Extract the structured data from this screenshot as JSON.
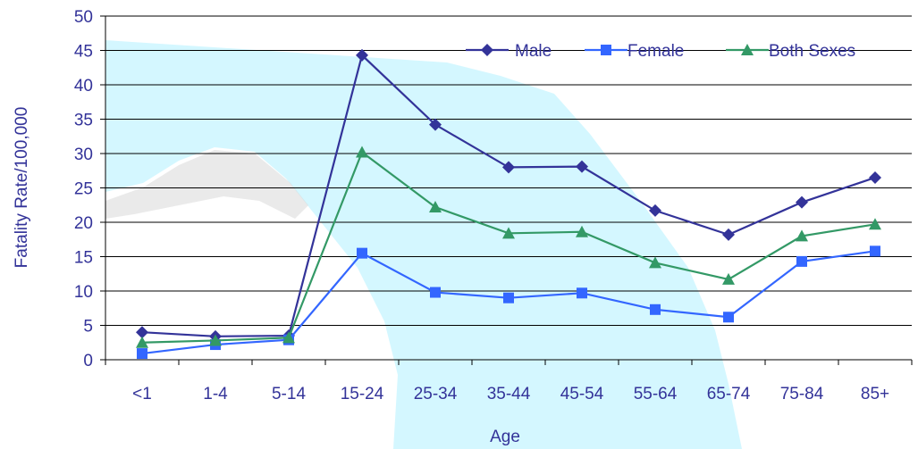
{
  "chart_data": {
    "type": "line",
    "xlabel": "Age",
    "ylabel": "Fatality Rate/100,000",
    "ylim": [
      0,
      50
    ],
    "yticks": [
      0,
      5,
      10,
      15,
      20,
      25,
      30,
      35,
      40,
      45,
      50
    ],
    "grid": true,
    "legend_position": "top-right",
    "categories": [
      "<1",
      "1-4",
      "5-14",
      "15-24",
      "25-34",
      "35-44",
      "45-54",
      "55-64",
      "65-74",
      "75-84",
      "85+"
    ],
    "series": [
      {
        "name": "Male",
        "marker": "diamond",
        "color": "#333399",
        "values": [
          4.0,
          3.4,
          3.5,
          44.3,
          34.2,
          28.0,
          28.1,
          21.7,
          18.2,
          22.9,
          26.5
        ]
      },
      {
        "name": "Female",
        "marker": "square",
        "color": "#3366ff",
        "values": [
          0.9,
          2.2,
          2.9,
          15.5,
          9.8,
          9.0,
          9.7,
          7.3,
          6.2,
          14.3,
          15.8
        ]
      },
      {
        "name": "Both Sexes",
        "marker": "triangle",
        "color": "#339966",
        "values": [
          2.5,
          2.8,
          3.2,
          30.2,
          22.2,
          18.4,
          18.6,
          14.1,
          11.7,
          18.0,
          19.7
        ]
      }
    ]
  }
}
